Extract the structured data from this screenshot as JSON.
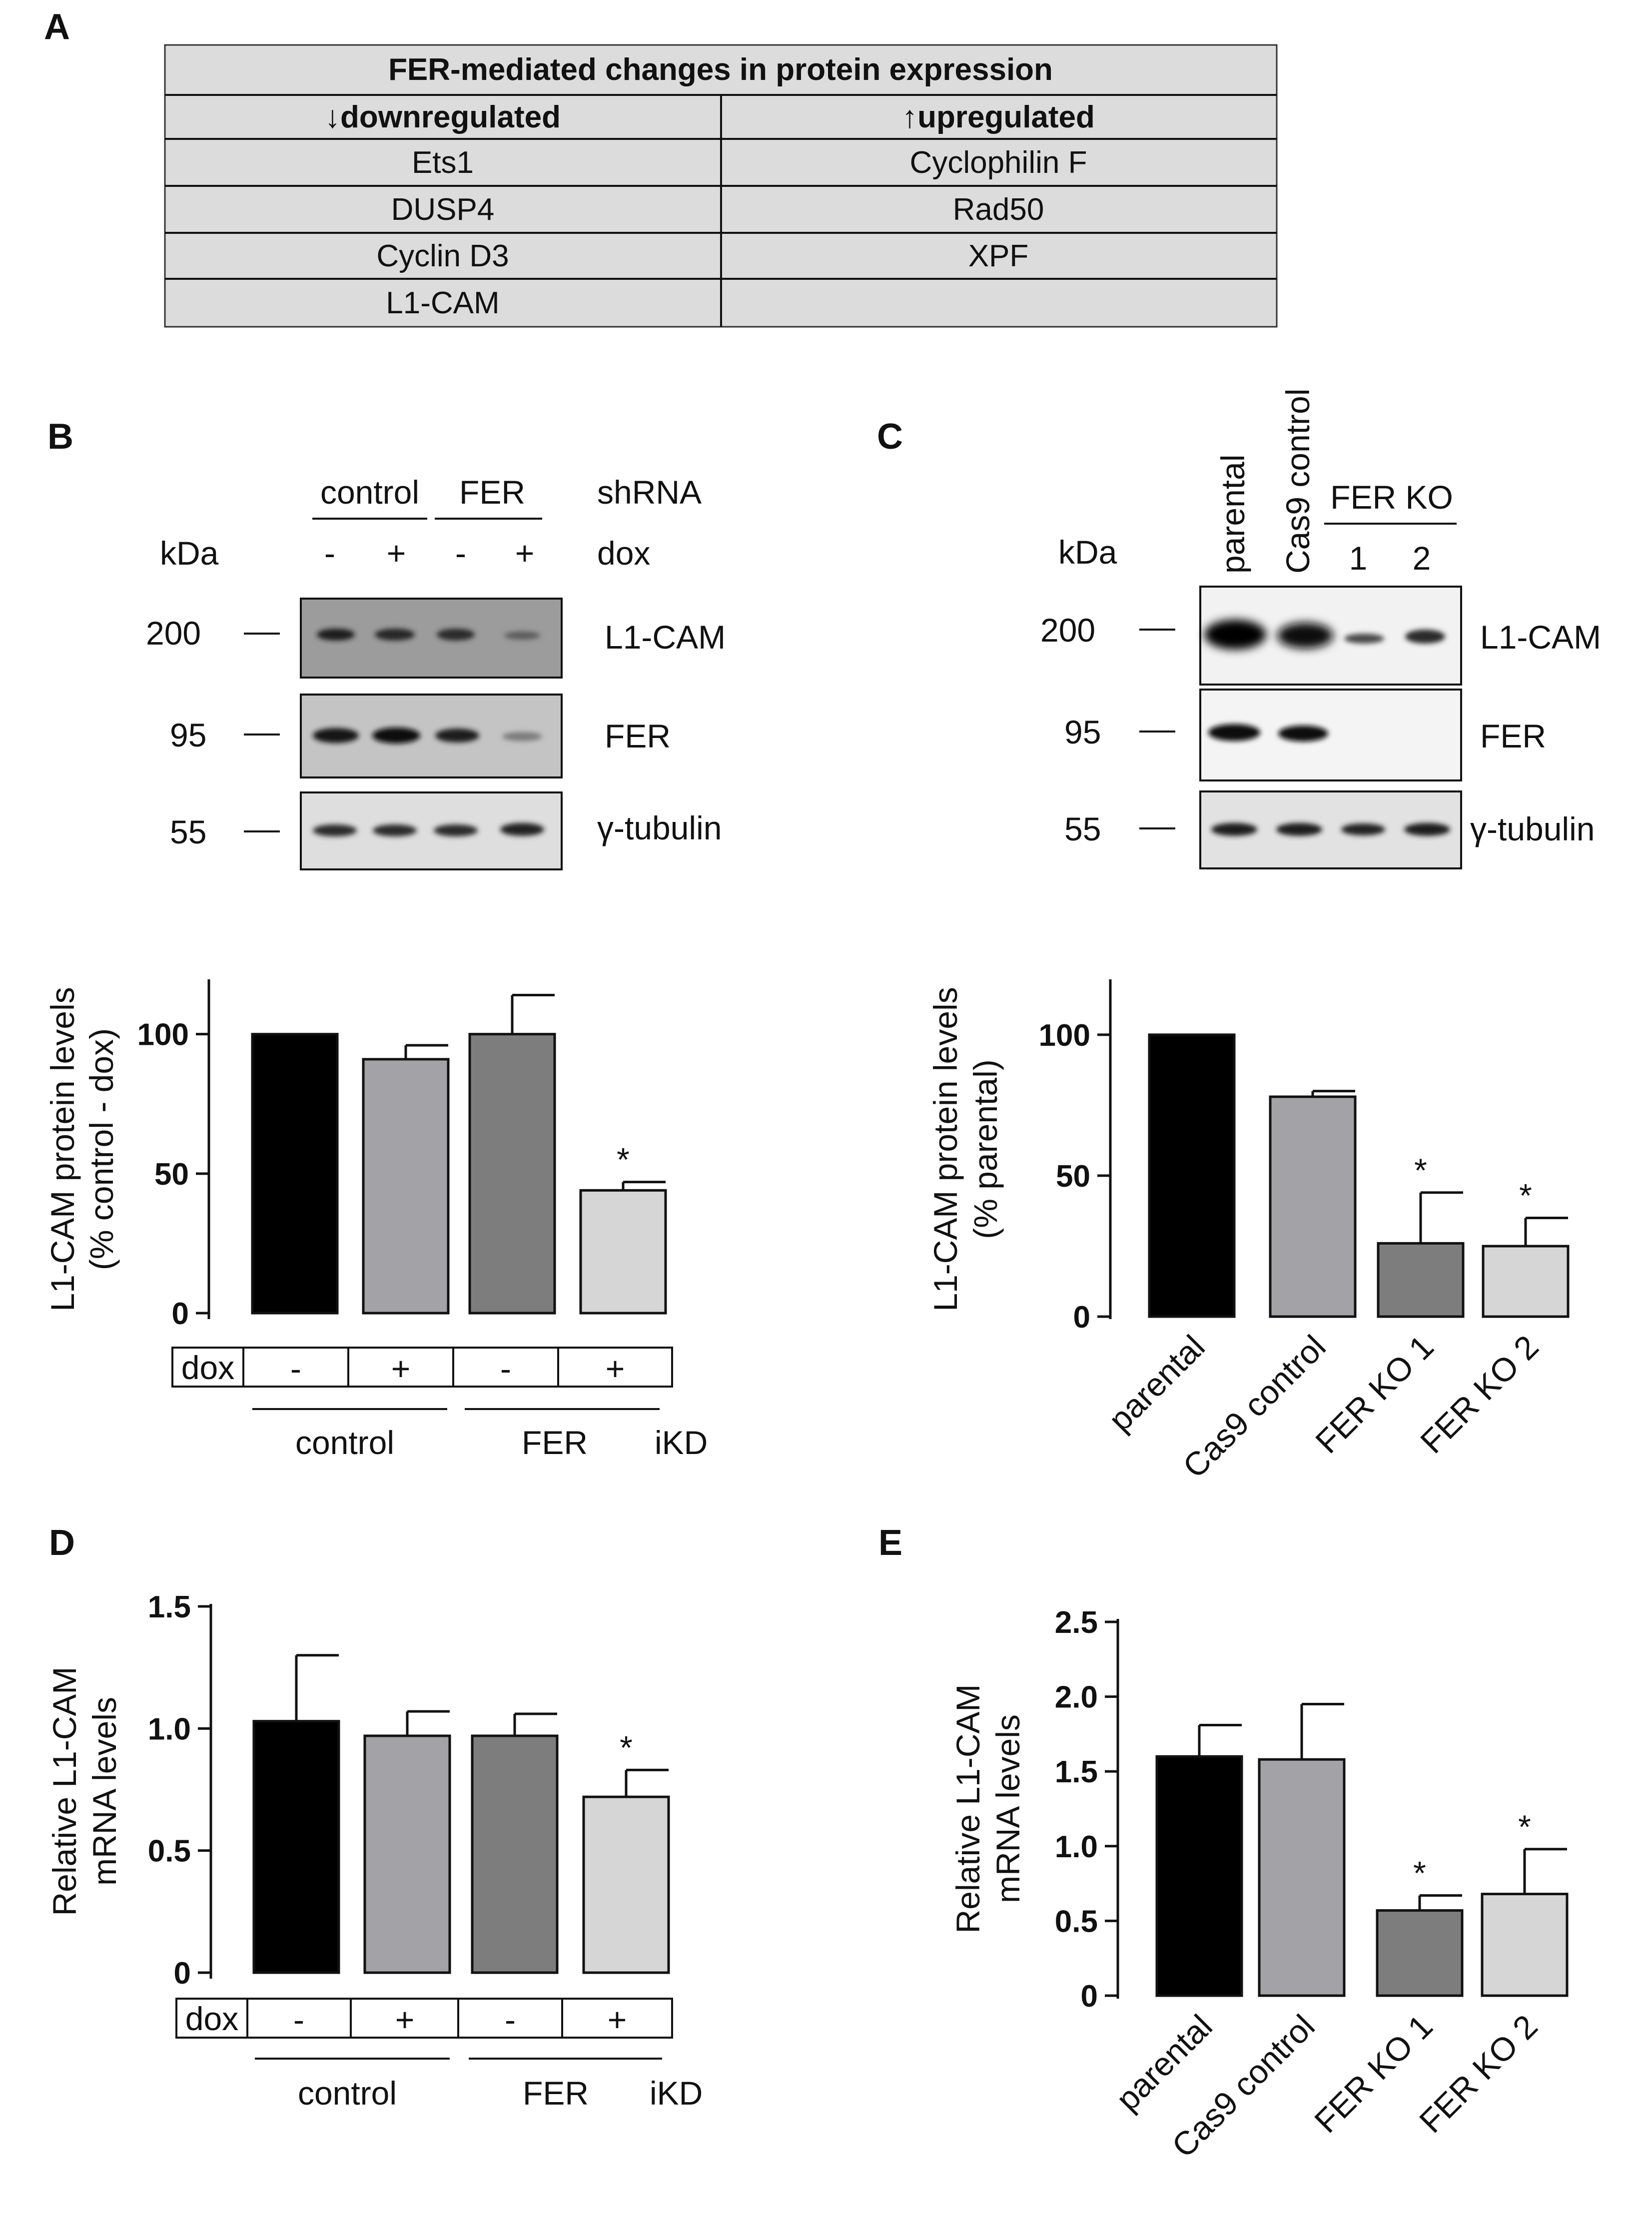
{
  "panels": {
    "a": "A",
    "b": "B",
    "c": "C",
    "d": "D",
    "e": "E"
  },
  "table": {
    "title": "FER-mediated changes in protein expression",
    "down_header": "↓downregulated",
    "up_header": "↑upregulated",
    "rows": [
      [
        "Ets1",
        "Cyclophilin F"
      ],
      [
        "DUSP4",
        "Rad50"
      ],
      [
        "Cyclin D3",
        "XPF"
      ],
      [
        "L1-CAM",
        ""
      ]
    ]
  },
  "blot_b": {
    "group_control": "control",
    "group_fer": "FER",
    "shrna": "shRNA",
    "kda": "kDa",
    "dox_signs": [
      "-",
      "+",
      "-",
      "+"
    ],
    "dox": "dox",
    "markers": [
      "200",
      "95",
      "55"
    ],
    "bands": [
      "L1-CAM",
      "FER",
      "γ-tubulin"
    ]
  },
  "blot_c": {
    "lanes": [
      "parental",
      "Cas9 control"
    ],
    "fer_ko": "FER KO",
    "ko_nums": [
      "1",
      "2"
    ],
    "kda": "kDa",
    "markers": [
      "200",
      "95",
      "55"
    ],
    "bands": [
      "L1-CAM",
      "FER",
      "γ-tubulin"
    ]
  },
  "colors": {
    "black": "#000000",
    "grey1": "#a3a2a7",
    "grey2": "#7d7d7d",
    "grey3": "#d6d6d6"
  },
  "chart_data": [
    {
      "id": "B-chart",
      "type": "bar",
      "ylabel": [
        "L1-CAM protein levels",
        "(% control - dox)"
      ],
      "ylim": [
        0,
        120
      ],
      "yticks": [
        "0",
        "50",
        "100"
      ],
      "yticks_values": [
        0,
        50,
        100
      ],
      "categories": [
        "control -dox",
        "control +dox",
        "FER -dox",
        "FER +dox"
      ],
      "values": [
        100,
        91,
        100,
        44
      ],
      "errors": [
        0,
        5,
        14,
        3
      ],
      "significant": [
        false,
        false,
        false,
        true
      ],
      "star": "*",
      "dox_label": "dox",
      "dox_signs": [
        "-",
        "+",
        "-",
        "+"
      ],
      "groups": [
        "control",
        "FER"
      ],
      "ikd": "iKD"
    },
    {
      "id": "C-chart",
      "type": "bar",
      "ylabel": [
        "L1-CAM protein levels",
        "(% parental)"
      ],
      "ylim": [
        0,
        120
      ],
      "yticks": [
        "0",
        "50",
        "100"
      ],
      "yticks_values": [
        0,
        50,
        100
      ],
      "categories": [
        "parental",
        "Cas9 control",
        "FER KO 1",
        "FER KO 2"
      ],
      "values": [
        100,
        78,
        26,
        25
      ],
      "errors": [
        0,
        2,
        18,
        10
      ],
      "significant": [
        false,
        false,
        true,
        true
      ],
      "star": "*"
    },
    {
      "id": "D-chart",
      "type": "bar",
      "ylabel": [
        "Relative L1-CAM",
        "mRNA levels"
      ],
      "ylim": [
        0,
        1.5
      ],
      "yticks": [
        "0",
        "0.5",
        "1.0",
        "1.5"
      ],
      "yticks_values": [
        0,
        0.5,
        1.0,
        1.5
      ],
      "categories": [
        "control -dox",
        "control +dox",
        "FER -dox",
        "FER +dox"
      ],
      "values": [
        1.03,
        0.97,
        0.97,
        0.72
      ],
      "errors": [
        0.27,
        0.1,
        0.09,
        0.11
      ],
      "significant": [
        false,
        false,
        false,
        true
      ],
      "star": "*",
      "dox_label": "dox",
      "dox_signs": [
        "-",
        "+",
        "-",
        "+"
      ],
      "groups": [
        "control",
        "FER"
      ],
      "ikd": "iKD"
    },
    {
      "id": "E-chart",
      "type": "bar",
      "ylabel": [
        "Relative L1-CAM",
        "mRNA levels"
      ],
      "ylim": [
        0,
        2.5
      ],
      "yticks": [
        "0",
        "0.5",
        "1.0",
        "1.5",
        "2.0",
        "2.5"
      ],
      "yticks_values": [
        0,
        0.5,
        1.0,
        1.5,
        2.0,
        2.5
      ],
      "categories": [
        "parental",
        "Cas9 control",
        "FER KO 1",
        "FER KO 2"
      ],
      "values": [
        1.6,
        1.58,
        0.57,
        0.68
      ],
      "errors": [
        0.21,
        0.37,
        0.1,
        0.3
      ],
      "significant": [
        false,
        false,
        true,
        true
      ],
      "star": "*"
    }
  ]
}
